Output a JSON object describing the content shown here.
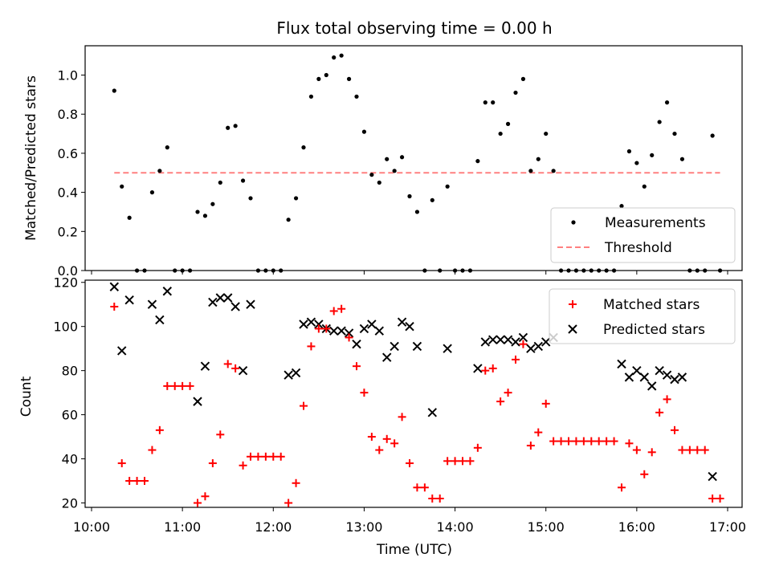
{
  "chart_data": [
    {
      "type": "scatter",
      "title": "Flux total observing time = 0.00 h",
      "xlabel": "",
      "ylabel": "Matched/Predicted stars",
      "xlim": [
        "10:00",
        "17:00"
      ],
      "ylim": [
        0,
        1.15
      ],
      "yticks": [
        "0.0",
        "0.2",
        "0.4",
        "0.6",
        "0.8",
        "1.0"
      ],
      "legend_position": "lower-right",
      "series": [
        {
          "name": "Measurements",
          "marker": "dot",
          "color": "#000000",
          "points": [
            [
              "10:15",
              0.92
            ],
            [
              "10:20",
              0.43
            ],
            [
              "10:25",
              0.27
            ],
            [
              "10:30",
              0.0
            ],
            [
              "10:35",
              0.0
            ],
            [
              "10:40",
              0.4
            ],
            [
              "10:45",
              0.51
            ],
            [
              "10:50",
              0.63
            ],
            [
              "10:55",
              0.0
            ],
            [
              "11:00",
              0.0
            ],
            [
              "11:05",
              0.0
            ],
            [
              "11:10",
              0.3
            ],
            [
              "11:15",
              0.28
            ],
            [
              "11:20",
              0.34
            ],
            [
              "11:25",
              0.45
            ],
            [
              "11:30",
              0.73
            ],
            [
              "11:35",
              0.74
            ],
            [
              "11:40",
              0.46
            ],
            [
              "11:45",
              0.37
            ],
            [
              "11:50",
              0.0
            ],
            [
              "11:55",
              0.0
            ],
            [
              "12:00",
              0.0
            ],
            [
              "12:05",
              0.0
            ],
            [
              "12:10",
              0.26
            ],
            [
              "12:15",
              0.37
            ],
            [
              "12:20",
              0.63
            ],
            [
              "12:25",
              0.89
            ],
            [
              "12:30",
              0.98
            ],
            [
              "12:35",
              1.0
            ],
            [
              "12:40",
              1.09
            ],
            [
              "12:45",
              1.1
            ],
            [
              "12:50",
              0.98
            ],
            [
              "12:55",
              0.89
            ],
            [
              "13:00",
              0.71
            ],
            [
              "13:05",
              0.49
            ],
            [
              "13:10",
              0.45
            ],
            [
              "13:15",
              0.57
            ],
            [
              "13:20",
              0.51
            ],
            [
              "13:25",
              0.58
            ],
            [
              "13:30",
              0.38
            ],
            [
              "13:35",
              0.3
            ],
            [
              "13:40",
              0.0
            ],
            [
              "13:45",
              0.36
            ],
            [
              "13:50",
              0.0
            ],
            [
              "13:55",
              0.43
            ],
            [
              "14:00",
              0.0
            ],
            [
              "14:05",
              0.0
            ],
            [
              "14:10",
              0.0
            ],
            [
              "14:15",
              0.56
            ],
            [
              "14:20",
              0.86
            ],
            [
              "14:25",
              0.86
            ],
            [
              "14:30",
              0.7
            ],
            [
              "14:35",
              0.75
            ],
            [
              "14:40",
              0.91
            ],
            [
              "14:45",
              0.98
            ],
            [
              "14:50",
              0.51
            ],
            [
              "14:55",
              0.57
            ],
            [
              "15:00",
              0.7
            ],
            [
              "15:05",
              0.51
            ],
            [
              "15:10",
              0.0
            ],
            [
              "15:15",
              0.0
            ],
            [
              "15:20",
              0.0
            ],
            [
              "15:25",
              0.0
            ],
            [
              "15:30",
              0.0
            ],
            [
              "15:35",
              0.0
            ],
            [
              "15:40",
              0.0
            ],
            [
              "15:45",
              0.0
            ],
            [
              "15:50",
              0.33
            ],
            [
              "15:55",
              0.61
            ],
            [
              "16:00",
              0.55
            ],
            [
              "16:05",
              0.43
            ],
            [
              "16:10",
              0.59
            ],
            [
              "16:15",
              0.76
            ],
            [
              "16:20",
              0.86
            ],
            [
              "16:25",
              0.7
            ],
            [
              "16:30",
              0.57
            ],
            [
              "16:35",
              0.0
            ],
            [
              "16:40",
              0.0
            ],
            [
              "16:45",
              0.0
            ],
            [
              "16:50",
              0.69
            ],
            [
              "16:55",
              0.0
            ]
          ]
        },
        {
          "name": "Threshold",
          "marker": "dashed-line",
          "color": "#ff8080",
          "points": [
            [
              "10:15",
              0.5
            ],
            [
              "16:55",
              0.5
            ]
          ]
        }
      ]
    },
    {
      "type": "scatter",
      "title": "",
      "xlabel": "Time (UTC)",
      "ylabel": "Count",
      "xlim": [
        "10:00",
        "17:00"
      ],
      "ylim": [
        18,
        121
      ],
      "yticks": [
        "20",
        "40",
        "60",
        "80",
        "100",
        "120"
      ],
      "xticks": [
        "10:00",
        "11:00",
        "12:00",
        "13:00",
        "14:00",
        "15:00",
        "16:00",
        "17:00"
      ],
      "legend_position": "upper-right",
      "series": [
        {
          "name": "Matched stars",
          "marker": "plus",
          "color": "#ff0000",
          "points": [
            [
              "10:15",
              109
            ],
            [
              "10:20",
              38
            ],
            [
              "10:25",
              30
            ],
            [
              "10:30",
              30
            ],
            [
              "10:35",
              30
            ],
            [
              "10:40",
              44
            ],
            [
              "10:45",
              53
            ],
            [
              "10:50",
              73
            ],
            [
              "10:55",
              73
            ],
            [
              "11:00",
              73
            ],
            [
              "11:05",
              73
            ],
            [
              "11:10",
              20
            ],
            [
              "11:15",
              23
            ],
            [
              "11:20",
              38
            ],
            [
              "11:25",
              51
            ],
            [
              "11:30",
              83
            ],
            [
              "11:35",
              81
            ],
            [
              "11:40",
              37
            ],
            [
              "11:45",
              41
            ],
            [
              "11:50",
              41
            ],
            [
              "11:55",
              41
            ],
            [
              "12:00",
              41
            ],
            [
              "12:05",
              41
            ],
            [
              "12:10",
              20
            ],
            [
              "12:15",
              29
            ],
            [
              "12:20",
              64
            ],
            [
              "12:25",
              91
            ],
            [
              "12:30",
              99
            ],
            [
              "12:35",
              99
            ],
            [
              "12:40",
              107
            ],
            [
              "12:45",
              108
            ],
            [
              "12:50",
              95
            ],
            [
              "12:55",
              82
            ],
            [
              "13:00",
              70
            ],
            [
              "13:05",
              50
            ],
            [
              "13:10",
              44
            ],
            [
              "13:15",
              49
            ],
            [
              "13:20",
              47
            ],
            [
              "13:25",
              59
            ],
            [
              "13:30",
              38
            ],
            [
              "13:35",
              27
            ],
            [
              "13:40",
              27
            ],
            [
              "13:45",
              22
            ],
            [
              "13:50",
              22
            ],
            [
              "13:55",
              39
            ],
            [
              "14:00",
              39
            ],
            [
              "14:05",
              39
            ],
            [
              "14:10",
              39
            ],
            [
              "14:15",
              45
            ],
            [
              "14:20",
              80
            ],
            [
              "14:25",
              81
            ],
            [
              "14:30",
              66
            ],
            [
              "14:35",
              70
            ],
            [
              "14:40",
              85
            ],
            [
              "14:45",
              92
            ],
            [
              "14:50",
              46
            ],
            [
              "14:55",
              52
            ],
            [
              "15:00",
              65
            ],
            [
              "15:05",
              48
            ],
            [
              "15:10",
              48
            ],
            [
              "15:15",
              48
            ],
            [
              "15:20",
              48
            ],
            [
              "15:25",
              48
            ],
            [
              "15:30",
              48
            ],
            [
              "15:35",
              48
            ],
            [
              "15:40",
              48
            ],
            [
              "15:45",
              48
            ],
            [
              "15:50",
              27
            ],
            [
              "15:55",
              47
            ],
            [
              "16:00",
              44
            ],
            [
              "16:05",
              33
            ],
            [
              "16:10",
              43
            ],
            [
              "16:15",
              61
            ],
            [
              "16:20",
              67
            ],
            [
              "16:25",
              53
            ],
            [
              "16:30",
              44
            ],
            [
              "16:35",
              44
            ],
            [
              "16:40",
              44
            ],
            [
              "16:45",
              44
            ],
            [
              "16:50",
              22
            ],
            [
              "16:55",
              22
            ]
          ]
        },
        {
          "name": "Predicted stars",
          "marker": "x",
          "color": "#000000",
          "points": [
            [
              "10:15",
              118
            ],
            [
              "10:20",
              89
            ],
            [
              "10:25",
              112
            ],
            [
              "10:40",
              110
            ],
            [
              "10:45",
              103
            ],
            [
              "10:50",
              116
            ],
            [
              "11:10",
              66
            ],
            [
              "11:15",
              82
            ],
            [
              "11:20",
              111
            ],
            [
              "11:25",
              113
            ],
            [
              "11:30",
              113
            ],
            [
              "11:35",
              109
            ],
            [
              "11:40",
              80
            ],
            [
              "11:45",
              110
            ],
            [
              "12:10",
              78
            ],
            [
              "12:15",
              79
            ],
            [
              "12:20",
              101
            ],
            [
              "12:25",
              102
            ],
            [
              "12:30",
              101
            ],
            [
              "12:35",
              99
            ],
            [
              "12:40",
              98
            ],
            [
              "12:45",
              98
            ],
            [
              "12:50",
              97
            ],
            [
              "12:55",
              92
            ],
            [
              "13:00",
              99
            ],
            [
              "13:05",
              101
            ],
            [
              "13:10",
              98
            ],
            [
              "13:15",
              86
            ],
            [
              "13:20",
              91
            ],
            [
              "13:25",
              102
            ],
            [
              "13:30",
              100
            ],
            [
              "13:35",
              91
            ],
            [
              "13:45",
              61
            ],
            [
              "13:55",
              90
            ],
            [
              "14:15",
              81
            ],
            [
              "14:20",
              93
            ],
            [
              "14:25",
              94
            ],
            [
              "14:30",
              94
            ],
            [
              "14:35",
              94
            ],
            [
              "14:40",
              93
            ],
            [
              "14:45",
              95
            ],
            [
              "14:50",
              90
            ],
            [
              "14:55",
              91
            ],
            [
              "15:00",
              93
            ],
            [
              "15:05",
              95
            ],
            [
              "15:50",
              83
            ],
            [
              "15:55",
              77
            ],
            [
              "16:00",
              80
            ],
            [
              "16:05",
              77
            ],
            [
              "16:10",
              73
            ],
            [
              "16:15",
              80
            ],
            [
              "16:20",
              78
            ],
            [
              "16:25",
              76
            ],
            [
              "16:30",
              77
            ],
            [
              "16:50",
              32
            ]
          ]
        }
      ]
    }
  ]
}
